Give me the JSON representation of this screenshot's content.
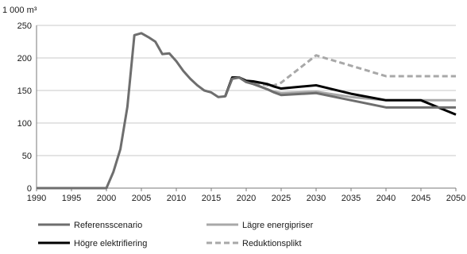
{
  "chart_data": {
    "type": "line",
    "unit_label": "1 000 m³",
    "ylim": [
      0,
      250
    ],
    "xlim": [
      1990,
      2050
    ],
    "y_ticks": [
      "0",
      "50",
      "100",
      "150",
      "200",
      "250"
    ],
    "x_ticks": [
      "1990",
      "1995",
      "2000",
      "2005",
      "2010",
      "2015",
      "2020",
      "2025",
      "2030",
      "2035",
      "2040",
      "2045",
      "2050"
    ],
    "grid": "horizontal",
    "legend_position": "bottom",
    "series": [
      {
        "name": "Referensscenario",
        "color": "#6e6e6e",
        "dash": "solid",
        "points": [
          [
            1990,
            0
          ],
          [
            1991,
            0
          ],
          [
            1992,
            0
          ],
          [
            1993,
            0
          ],
          [
            1994,
            0
          ],
          [
            1995,
            0
          ],
          [
            1996,
            0
          ],
          [
            1997,
            0
          ],
          [
            1998,
            0
          ],
          [
            1999,
            0
          ],
          [
            2000,
            0
          ],
          [
            2001,
            25
          ],
          [
            2002,
            60
          ],
          [
            2003,
            125
          ],
          [
            2004,
            235
          ],
          [
            2005,
            238
          ],
          [
            2006,
            232
          ],
          [
            2007,
            225
          ],
          [
            2008,
            206
          ],
          [
            2009,
            207
          ],
          [
            2010,
            195
          ],
          [
            2011,
            180
          ],
          [
            2012,
            168
          ],
          [
            2013,
            158
          ],
          [
            2014,
            150
          ],
          [
            2015,
            147
          ],
          [
            2016,
            140
          ],
          [
            2017,
            141
          ],
          [
            2018,
            168
          ],
          [
            2019,
            170
          ],
          [
            2020,
            163
          ],
          [
            2021,
            160
          ],
          [
            2022,
            156
          ],
          [
            2023,
            152
          ],
          [
            2024,
            147
          ],
          [
            2025,
            143
          ],
          [
            2030,
            146
          ],
          [
            2035,
            135
          ],
          [
            2040,
            124
          ],
          [
            2045,
            124
          ],
          [
            2050,
            124
          ]
        ]
      },
      {
        "name": "Lägre energipriser",
        "color": "#a8a8a8",
        "dash": "solid",
        "points": [
          [
            2017,
            141
          ],
          [
            2018,
            170
          ],
          [
            2019,
            170
          ],
          [
            2020,
            163
          ],
          [
            2021,
            160
          ],
          [
            2022,
            156
          ],
          [
            2023,
            152
          ],
          [
            2024,
            148
          ],
          [
            2025,
            146
          ],
          [
            2030,
            148
          ],
          [
            2035,
            140
          ],
          [
            2040,
            135
          ],
          [
            2045,
            135
          ],
          [
            2050,
            135
          ]
        ]
      },
      {
        "name": "Högre elektrifiering",
        "color": "#000000",
        "dash": "solid",
        "points": [
          [
            2017,
            141
          ],
          [
            2018,
            170
          ],
          [
            2019,
            170
          ],
          [
            2020,
            165
          ],
          [
            2021,
            164
          ],
          [
            2022,
            162
          ],
          [
            2023,
            160
          ],
          [
            2024,
            156
          ],
          [
            2025,
            153
          ],
          [
            2030,
            158
          ],
          [
            2035,
            145
          ],
          [
            2040,
            135
          ],
          [
            2045,
            135
          ],
          [
            2050,
            113
          ]
        ]
      },
      {
        "name": "Reduktionsplikt",
        "color": "#a8a8a8",
        "dash": "dashed",
        "points": [
          [
            2017,
            141
          ],
          [
            2018,
            170
          ],
          [
            2019,
            170
          ],
          [
            2020,
            163
          ],
          [
            2021,
            161
          ],
          [
            2022,
            160
          ],
          [
            2023,
            158
          ],
          [
            2024,
            158
          ],
          [
            2025,
            162
          ],
          [
            2030,
            204
          ],
          [
            2035,
            188
          ],
          [
            2040,
            172
          ],
          [
            2045,
            172
          ],
          [
            2050,
            172
          ]
        ]
      }
    ]
  }
}
